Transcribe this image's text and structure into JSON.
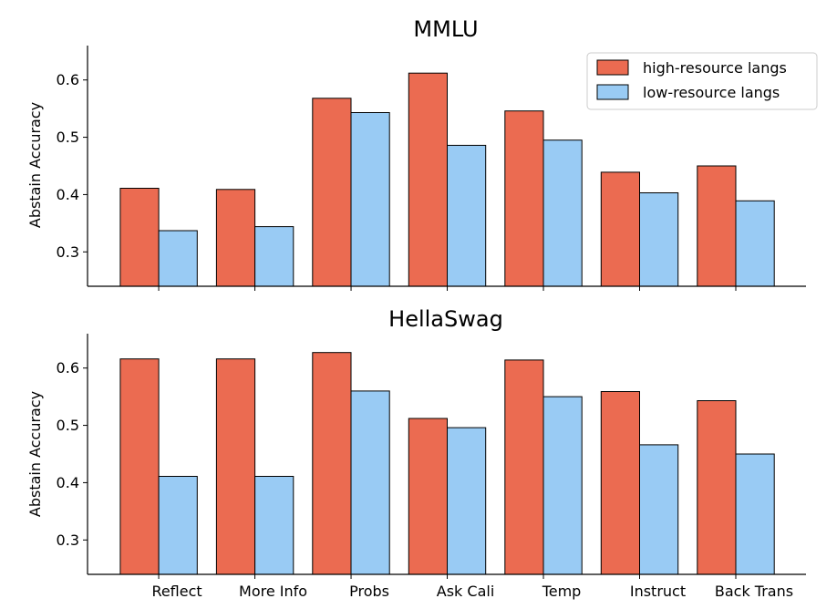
{
  "chart_data": [
    {
      "type": "bar",
      "title": "MMLU",
      "xlabel": "",
      "ylabel": "Abstain Accuracy",
      "ylim": [
        0.24,
        0.66
      ],
      "yticks": [
        0.3,
        0.4,
        0.5,
        0.6
      ],
      "categories": [
        "Reflect",
        "More Info",
        "Probs",
        "Ask Cali",
        "Temp",
        "Instruct",
        "Back Trans"
      ],
      "series": [
        {
          "name": "high-resource langs",
          "color": "#eb6b51",
          "values": [
            0.411,
            0.409,
            0.568,
            0.612,
            0.546,
            0.439,
            0.45
          ]
        },
        {
          "name": "low-resource langs",
          "color": "#99cbf4",
          "values": [
            0.337,
            0.344,
            0.543,
            0.486,
            0.495,
            0.403,
            0.389
          ]
        }
      ],
      "legend": "top-right",
      "show_x_tick_labels": false
    },
    {
      "type": "bar",
      "title": "HellaSwag",
      "xlabel": "",
      "ylabel": "Abstain Accuracy",
      "ylim": [
        0.24,
        0.66
      ],
      "yticks": [
        0.3,
        0.4,
        0.5,
        0.6
      ],
      "categories": [
        "Reflect",
        "More Info",
        "Probs",
        "Ask Cali",
        "Temp",
        "Instruct",
        "Back Trans"
      ],
      "series": [
        {
          "name": "high-resource langs",
          "color": "#eb6b51",
          "values": [
            0.616,
            0.616,
            0.627,
            0.512,
            0.614,
            0.559,
            0.543
          ]
        },
        {
          "name": "low-resource langs",
          "color": "#99cbf4",
          "values": [
            0.411,
            0.411,
            0.56,
            0.496,
            0.55,
            0.466,
            0.45
          ]
        }
      ],
      "show_x_tick_labels": true
    }
  ]
}
